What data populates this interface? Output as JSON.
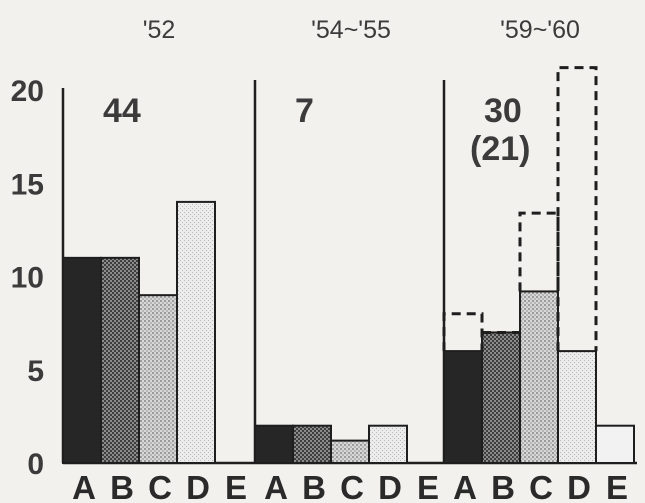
{
  "chart_data": {
    "type": "bar",
    "ylim": [
      0,
      20
    ],
    "yticks": [
      "0",
      "5",
      "10",
      "15",
      "20"
    ],
    "categories": [
      "A",
      "B",
      "C",
      "D",
      "E"
    ],
    "groups": [
      {
        "period": "'52",
        "count": "44",
        "count_note": "",
        "values": [
          11,
          11,
          9,
          14,
          null
        ],
        "dashed_values": null
      },
      {
        "period": "'54~'55",
        "count": "7",
        "count_note": "",
        "values": [
          2,
          2,
          1.2,
          2,
          null
        ],
        "dashed_values": null
      },
      {
        "period": "'59~'60",
        "count": "30",
        "count_note": "(21)",
        "values": [
          6,
          7,
          9.2,
          6,
          2
        ],
        "dashed_values": [
          8,
          7,
          13.4,
          21.2,
          null
        ]
      }
    ],
    "colors": {
      "A": "#262626",
      "B": "#6f6f6f",
      "C": "#c9c9c9",
      "D": "#e3e3e3",
      "E": "#f2f2f2"
    }
  }
}
